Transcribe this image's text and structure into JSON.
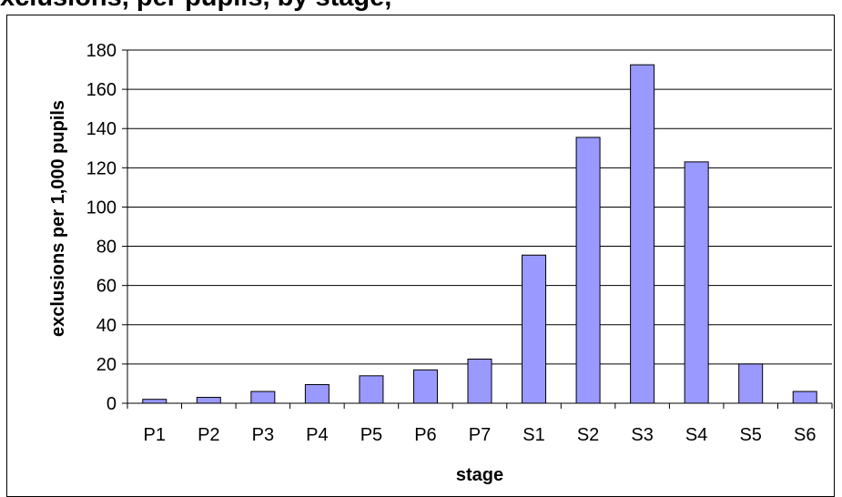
{
  "chart_data": {
    "type": "bar",
    "title": "xclusions, per pupils, by stage,",
    "xlabel": "stage",
    "ylabel": "exclusions per 1,000 pupils",
    "categories": [
      "P1",
      "P2",
      "P3",
      "P4",
      "P5",
      "P6",
      "P7",
      "S1",
      "S2",
      "S3",
      "S4",
      "S5",
      "S6"
    ],
    "values": [
      2,
      3,
      6,
      9.5,
      14,
      17,
      22.5,
      75.5,
      135.5,
      172.5,
      123,
      20,
      6
    ],
    "ylim": [
      0,
      180
    ],
    "yticks": [
      0,
      20,
      40,
      60,
      80,
      100,
      120,
      140,
      160,
      180
    ],
    "grid": true,
    "bar_color": "#9999ff"
  }
}
